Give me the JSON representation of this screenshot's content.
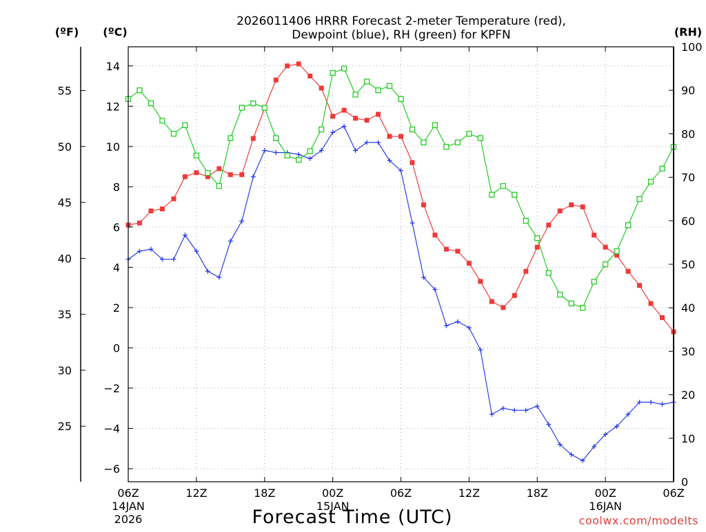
{
  "chart_data": {
    "type": "line",
    "title_line1": "2026011406 HRRR Forecast 2-meter Temperature (red),",
    "title_line2": "Dewpoint (blue), RH (green) for KPFN",
    "xlabel": "Forecast Time (UTC)",
    "ylabel_left_f": "(ºF)",
    "ylabel_left_c": "(ºC)",
    "ylabel_right": "(RH)",
    "watermark": "coolwx.com/modelts",
    "x_ticks": [
      {
        "h": 0,
        "label": "06Z",
        "date": "14JAN",
        "year": "2026"
      },
      {
        "h": 6,
        "label": "12Z"
      },
      {
        "h": 12,
        "label": "18Z"
      },
      {
        "h": 18,
        "label": "00Z",
        "date": "15JAN"
      },
      {
        "h": 24,
        "label": "06Z"
      },
      {
        "h": 30,
        "label": "12Z"
      },
      {
        "h": 36,
        "label": "18Z"
      },
      {
        "h": 42,
        "label": "00Z",
        "date": "16JAN"
      },
      {
        "h": 48,
        "label": "06Z"
      }
    ],
    "xlim": [
      0,
      48
    ],
    "ylim_c": [
      -6.65,
      14.95
    ],
    "y_ticks_c": [
      -6,
      -4,
      -2,
      0,
      2,
      4,
      6,
      8,
      10,
      12,
      14
    ],
    "y_ticks_f": [
      25,
      30,
      35,
      40,
      45,
      50,
      55
    ],
    "ylim_rh": [
      0,
      100
    ],
    "y_ticks_rh": [
      0,
      10,
      20,
      30,
      40,
      50,
      60,
      70,
      80,
      90,
      100
    ],
    "grid": true,
    "series": [
      {
        "name": "Temperature",
        "unit": "C",
        "color": "#ef3a3a",
        "marker": "filled-square",
        "values": [
          6.1,
          6.2,
          6.8,
          6.9,
          7.4,
          8.5,
          8.7,
          8.5,
          8.9,
          8.6,
          8.6,
          10.4,
          11.9,
          13.3,
          14.0,
          14.1,
          13.5,
          12.9,
          11.5,
          11.8,
          11.4,
          11.3,
          11.6,
          10.5,
          10.5,
          9.2,
          7.1,
          5.6,
          4.9,
          4.8,
          4.2,
          3.3,
          2.3,
          2.0,
          2.6,
          3.8,
          5.0,
          6.1,
          6.8,
          7.1,
          7.0,
          5.6,
          5.0,
          4.6,
          3.8,
          3.1,
          2.2,
          1.5,
          0.8
        ]
      },
      {
        "name": "Dewpoint",
        "unit": "C",
        "color": "#2b3ee8",
        "marker": "plus",
        "values": [
          4.4,
          4.8,
          4.9,
          4.4,
          4.4,
          5.6,
          4.8,
          3.8,
          3.5,
          5.3,
          6.3,
          8.5,
          9.8,
          9.7,
          9.7,
          9.6,
          9.4,
          9.8,
          10.7,
          11.0,
          9.8,
          10.2,
          10.2,
          9.3,
          8.8,
          6.2,
          3.5,
          2.9,
          1.1,
          1.3,
          1.0,
          -0.1,
          -3.3,
          -3.0,
          -3.1,
          -3.1,
          -2.9,
          -3.8,
          -4.8,
          -5.3,
          -5.6,
          -4.9,
          -4.3,
          -3.9,
          -3.3,
          -2.7,
          -2.7,
          -2.8,
          -2.7
        ]
      },
      {
        "name": "RH",
        "unit": "%",
        "color": "#22cc22",
        "marker": "open-square",
        "values": [
          88,
          90,
          87,
          83,
          80,
          82,
          75,
          71,
          68,
          79,
          86,
          87,
          86,
          79,
          75,
          74,
          76,
          81,
          94,
          95,
          89,
          92,
          90,
          91,
          88,
          81,
          78,
          82,
          77,
          78,
          80,
          79,
          66,
          68,
          66,
          60,
          56,
          48,
          43,
          41,
          40,
          46,
          50,
          53,
          59,
          65,
          69,
          72,
          77
        ]
      }
    ]
  }
}
